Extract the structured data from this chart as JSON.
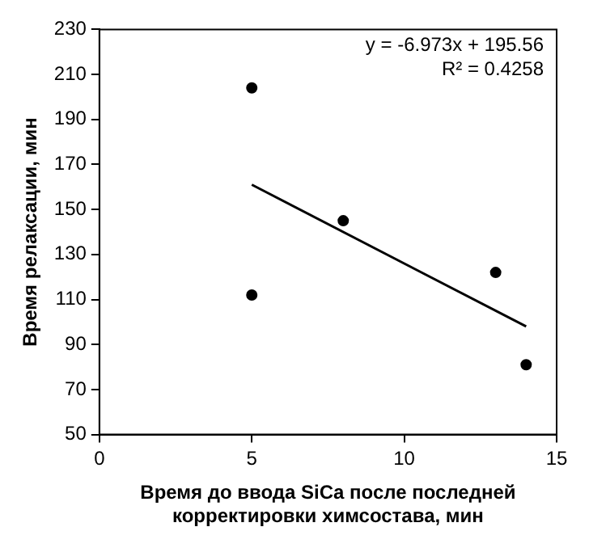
{
  "chart_data": {
    "type": "scatter",
    "xlabel": "Время до ввода SiCa после последней корректировки химсостава, мин",
    "ylabel": "Время релаксации, мин",
    "series": [
      {
        "type": "scatter",
        "color": "#000000",
        "x": [
          5,
          5,
          8,
          13,
          14
        ],
        "values": [
          204,
          112,
          145,
          122,
          81
        ],
        "marker": "circle"
      },
      {
        "type": "line",
        "color": "#000000",
        "x": [
          5,
          14
        ],
        "values": [
          161,
          98
        ],
        "marker": "none"
      }
    ],
    "xlim": [
      0,
      15
    ],
    "xticks": [
      0,
      5,
      10,
      15
    ],
    "ylim": [
      50,
      230
    ],
    "yticks": [
      50,
      70,
      90,
      110,
      130,
      150,
      170,
      190,
      210,
      230
    ],
    "annotations": [
      "y = -6.973x + 195.56",
      "R² = 0.4258"
    ],
    "grid": false,
    "legend": false
  }
}
